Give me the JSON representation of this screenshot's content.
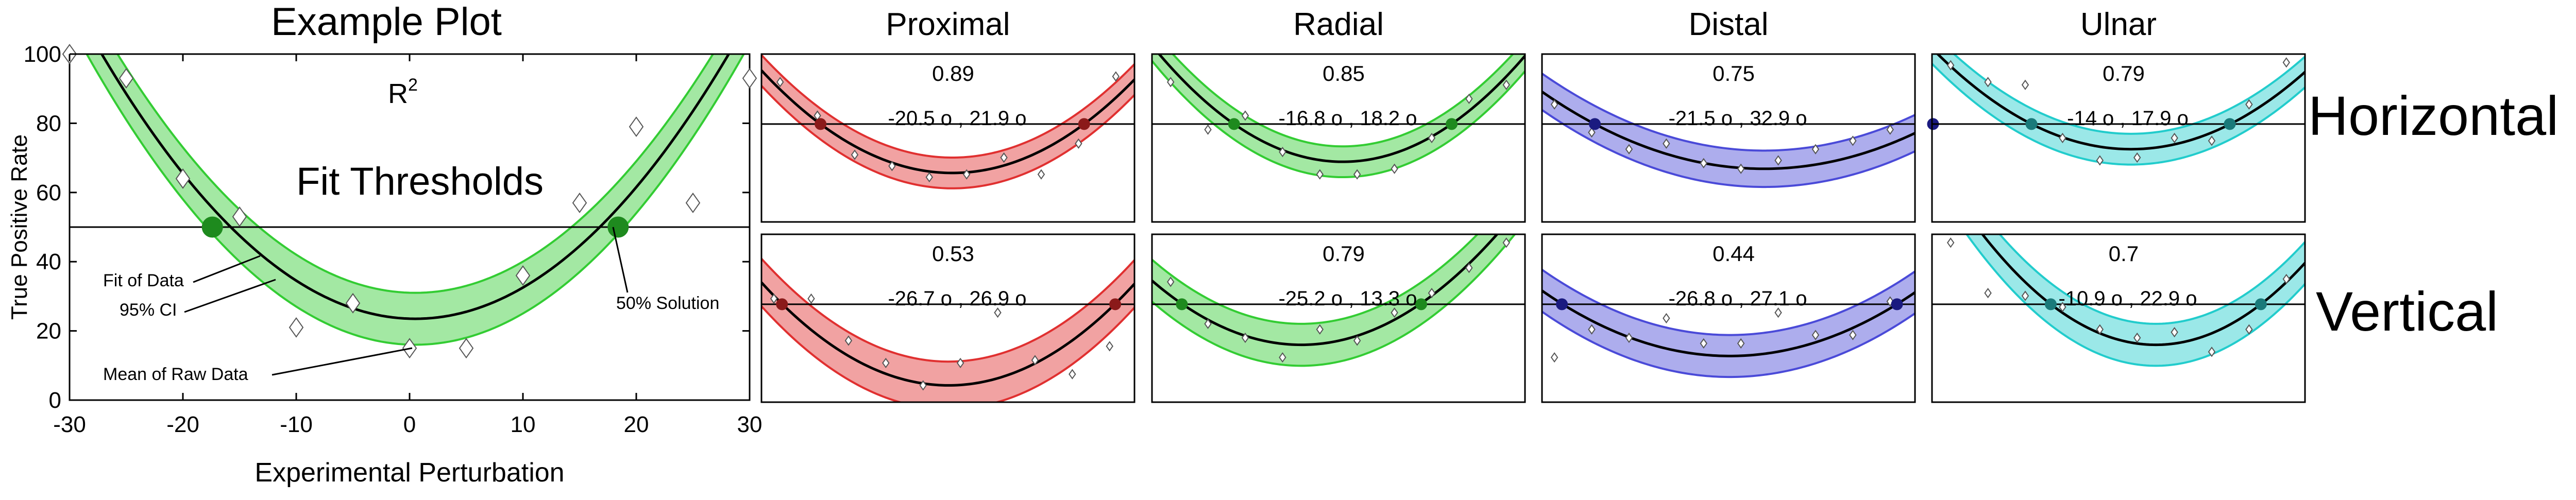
{
  "figure": {
    "row_labels": [
      "Horizontal",
      "Vertical"
    ]
  },
  "colors": {
    "green": "#33cc33",
    "red": "#e03030",
    "blue": "#4a4ad8",
    "cyan": "#22cccc",
    "dark_green": "#1e8a1e",
    "dark_red": "#8b1a1a",
    "dark_blue": "#1a1a80",
    "dark_cyan": "#1a7a7a"
  },
  "chart_data": [
    {
      "type": "scatter",
      "title": "Example Plot",
      "xlabel": "Experimental Perturbation",
      "ylabel": "True Positive Rate",
      "xlim": [
        -30,
        30
      ],
      "ylim": [
        0,
        100
      ],
      "xticks": [
        -30,
        -20,
        -10,
        0,
        10,
        20,
        30
      ],
      "yticks": [
        0,
        20,
        40,
        60,
        80,
        100
      ],
      "threshold": 50,
      "fit_curve": {
        "vertex_x": 0.5,
        "vertex_y": 23.5,
        "a": 0.1,
        "ci": 7.5
      },
      "thresholds_x": [
        -17.4,
        18.4
      ],
      "raw_points": [
        [
          -30,
          100
        ],
        [
          -25,
          93
        ],
        [
          -20,
          64
        ],
        [
          -15,
          53
        ],
        [
          -10,
          21
        ],
        [
          -5,
          28
        ],
        [
          0,
          15
        ],
        [
          5,
          15
        ],
        [
          10,
          36
        ],
        [
          15,
          57
        ],
        [
          20,
          79
        ],
        [
          25,
          57
        ],
        [
          30,
          93
        ]
      ],
      "labels": {
        "r2": "R",
        "r2_sup": "2",
        "fit_thresholds": "Fit Thresholds",
        "fit_of_data": "Fit of Data",
        "ci": "95% CI",
        "mean_raw": "Mean of Raw Data",
        "solution": "50% Solution"
      }
    },
    {
      "type": "scatter",
      "title": "Proximal",
      "row": "Horizontal",
      "color": "red",
      "r2": "0.89",
      "thresholds_text": "-20.5 o , 21.9 o",
      "threshold": 75,
      "thresholds_x": [
        -20.5,
        21.9
      ],
      "fit_curve": {
        "vertex_x": 0.7,
        "vertex_y": 57.5,
        "a": 0.0389,
        "ci": 5.5
      },
      "raw_points": [
        [
          -27,
          90
        ],
        [
          -21,
          78
        ],
        [
          -15,
          64
        ],
        [
          -9,
          60
        ],
        [
          -3,
          56
        ],
        [
          3,
          57
        ],
        [
          9,
          63
        ],
        [
          15,
          57
        ],
        [
          21,
          68
        ],
        [
          27,
          92
        ]
      ]
    },
    {
      "type": "scatter",
      "title": "Radial",
      "row": "Horizontal",
      "color": "green",
      "r2": "0.85",
      "thresholds_text": "-16.8 o , 18.2 o",
      "threshold": 75,
      "thresholds_x": [
        -16.8,
        18.2
      ],
      "fit_curve": {
        "vertex_x": 0.7,
        "vertex_y": 61.5,
        "a": 0.0441,
        "ci": 5.5
      },
      "raw_points": [
        [
          -27,
          90
        ],
        [
          -21,
          73
        ],
        [
          -15,
          78
        ],
        [
          -9,
          65
        ],
        [
          -3,
          57
        ],
        [
          3,
          57
        ],
        [
          9,
          59
        ],
        [
          15,
          70
        ],
        [
          21,
          84
        ],
        [
          27,
          89
        ]
      ]
    },
    {
      "type": "scatter",
      "title": "Distal",
      "row": "Horizontal",
      "color": "blue",
      "r2": "0.75",
      "thresholds_text": "-21.5 o , 32.9 o",
      "threshold": 75,
      "thresholds_x": [
        -21.5,
        32.9
      ],
      "fit_curve": {
        "vertex_x": 5.7,
        "vertex_y": 59,
        "a": 0.0216,
        "ci": 6.5
      },
      "raw_points": [
        [
          -28,
          82
        ],
        [
          -22,
          72
        ],
        [
          -16,
          66
        ],
        [
          -10,
          68
        ],
        [
          -4,
          61
        ],
        [
          2,
          59
        ],
        [
          8,
          62
        ],
        [
          14,
          66
        ],
        [
          20,
          69
        ],
        [
          26,
          73
        ]
      ]
    },
    {
      "type": "scatter",
      "title": "Ulnar",
      "row": "Horizontal",
      "color": "cyan",
      "r2": "0.79",
      "thresholds_text": "-14 o , 17.9 o",
      "threshold": 75,
      "thresholds_x": [
        -14,
        17.9
      ],
      "fit_curve": {
        "vertex_x": 2,
        "vertex_y": 66,
        "a": 0.0352,
        "ci": 5.5
      },
      "raw_points": [
        [
          -27,
          96
        ],
        [
          -21,
          90
        ],
        [
          -15,
          89
        ],
        [
          -9,
          70
        ],
        [
          -3,
          62
        ],
        [
          3,
          63
        ],
        [
          9,
          70
        ],
        [
          15,
          69
        ],
        [
          21,
          82
        ],
        [
          27,
          97
        ]
      ]
    },
    {
      "type": "scatter",
      "title": "",
      "row": "Vertical",
      "color": "red",
      "r2": "0.53",
      "thresholds_text": "-26.7 o , 26.9 o",
      "threshold": 75,
      "thresholds_x": [
        -26.7,
        26.9
      ],
      "fit_curve": {
        "vertex_x": 0.1,
        "vertex_y": 46,
        "a": 0.0406,
        "ci": 8.5
      },
      "raw_points": [
        [
          -28,
          77
        ],
        [
          -22,
          77
        ],
        [
          -16,
          62
        ],
        [
          -10,
          54
        ],
        [
          -4,
          46
        ],
        [
          2,
          54
        ],
        [
          8,
          72
        ],
        [
          14,
          55
        ],
        [
          20,
          50
        ],
        [
          26,
          60
        ]
      ]
    },
    {
      "type": "scatter",
      "title": "",
      "row": "Vertical",
      "color": "green",
      "r2": "0.79",
      "thresholds_text": "-25.2 o , 13.3 o",
      "threshold": 75,
      "thresholds_x": [
        -25.2,
        13.3
      ],
      "fit_curve": {
        "vertex_x": -6,
        "vertex_y": 60.5,
        "a": 0.0398,
        "ci": 7.5
      },
      "raw_points": [
        [
          -27,
          83
        ],
        [
          -21,
          68
        ],
        [
          -15,
          63
        ],
        [
          -9,
          56
        ],
        [
          -3,
          66
        ],
        [
          3,
          62
        ],
        [
          9,
          72
        ],
        [
          15,
          79
        ],
        [
          21,
          88
        ],
        [
          27,
          97
        ]
      ]
    },
    {
      "type": "scatter",
      "title": "",
      "row": "Vertical",
      "color": "blue",
      "r2": "0.44",
      "thresholds_text": "-26.8 o , 27.1 o",
      "threshold": 75,
      "thresholds_x": [
        -26.8,
        27.1
      ],
      "fit_curve": {
        "vertex_x": 0.2,
        "vertex_y": 56.5,
        "a": 0.0256,
        "ci": 7.5
      },
      "raw_points": [
        [
          -28,
          56
        ],
        [
          -22,
          66
        ],
        [
          -16,
          63
        ],
        [
          -10,
          70
        ],
        [
          -4,
          61
        ],
        [
          2,
          61
        ],
        [
          8,
          72
        ],
        [
          14,
          64
        ],
        [
          20,
          64
        ],
        [
          26,
          76
        ]
      ]
    },
    {
      "type": "scatter",
      "title": "",
      "row": "Vertical",
      "color": "cyan",
      "r2": "0.7",
      "thresholds_text": "-10.9 o , 22.9 o",
      "threshold": 75,
      "thresholds_x": [
        -10.9,
        22.9
      ],
      "fit_curve": {
        "vertex_x": 6,
        "vertex_y": 60.5,
        "a": 0.0508,
        "ci": 7.5
      },
      "raw_points": [
        [
          -27,
          97
        ],
        [
          -21,
          79
        ],
        [
          -15,
          78
        ],
        [
          -9,
          74
        ],
        [
          -3,
          66
        ],
        [
          3,
          63
        ],
        [
          9,
          65
        ],
        [
          15,
          58
        ],
        [
          21,
          66
        ],
        [
          27,
          84
        ]
      ]
    }
  ]
}
